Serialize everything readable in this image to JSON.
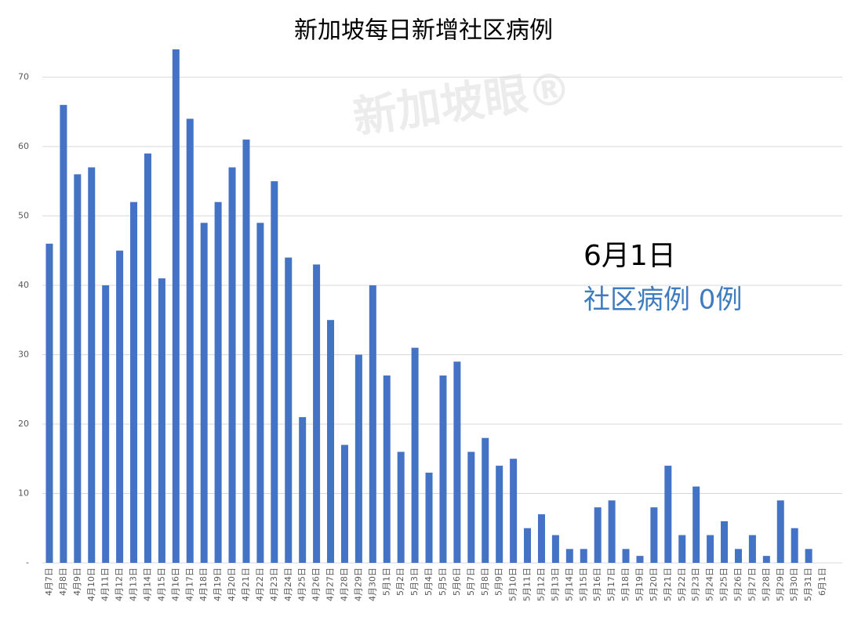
{
  "chart_data": {
    "type": "bar",
    "title": "新加坡每日新增社区病例",
    "categories": [
      "4月7日",
      "4月8日",
      "4月9日",
      "4月10日",
      "4月11日",
      "4月12日",
      "4月13日",
      "4月14日",
      "4月15日",
      "4月16日",
      "4月17日",
      "4月18日",
      "4月19日",
      "4月20日",
      "4月21日",
      "4月22日",
      "4月23日",
      "4月24日",
      "4月25日",
      "4月26日",
      "4月27日",
      "4月28日",
      "4月29日",
      "4月30日",
      "5月1日",
      "5月2日",
      "5月3日",
      "5月4日",
      "5月5日",
      "5月6日",
      "5月7日",
      "5月8日",
      "5月9日",
      "5月10日",
      "5月11日",
      "5月12日",
      "5月13日",
      "5月14日",
      "5月15日",
      "5月16日",
      "5月17日",
      "5月18日",
      "5月19日",
      "5月20日",
      "5月21日",
      "5月22日",
      "5月23日",
      "5月24日",
      "5月25日",
      "5月26日",
      "5月27日",
      "5月28日",
      "5月29日",
      "5月30日",
      "5月31日",
      "6月1日"
    ],
    "values": [
      46,
      66,
      56,
      57,
      40,
      45,
      52,
      59,
      41,
      74,
      64,
      49,
      52,
      57,
      61,
      49,
      55,
      44,
      21,
      43,
      35,
      17,
      30,
      40,
      27,
      16,
      31,
      13,
      27,
      29,
      16,
      18,
      14,
      15,
      5,
      7,
      4,
      2,
      2,
      8,
      9,
      2,
      1,
      8,
      14,
      4,
      11,
      4,
      6,
      2,
      4,
      1,
      9,
      5,
      2,
      0
    ],
    "color": "#4472c4",
    "ylim": [
      0,
      74
    ],
    "yticks": [
      {
        "value": 0,
        "label": "-"
      },
      10,
      20,
      30,
      40,
      50,
      60,
      70
    ],
    "grid": true,
    "annotations": [
      "6月1日",
      "社区病例 0例"
    ],
    "watermark": "新加坡眼®"
  }
}
